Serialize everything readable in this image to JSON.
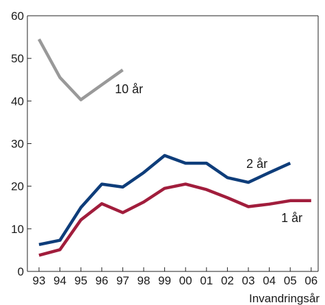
{
  "chart_data": {
    "type": "line",
    "title": "",
    "xlabel": "Invandringsår",
    "ylabel": "",
    "categories": [
      "93",
      "94",
      "95",
      "96",
      "97",
      "98",
      "99",
      "00",
      "01",
      "02",
      "03",
      "04",
      "05",
      "06"
    ],
    "ylim": [
      0,
      60
    ],
    "yticks": [
      0,
      10,
      20,
      30,
      40,
      50,
      60
    ],
    "grid": false,
    "legend": "none",
    "series": [
      {
        "name": "10 år",
        "color": "#999999",
        "values": [
          54.5,
          45.5,
          40.3,
          43.8,
          47.3,
          null,
          null,
          null,
          null,
          null,
          null,
          null,
          null,
          null
        ]
      },
      {
        "name": "2 år",
        "color": "#0e3d7a",
        "values": [
          6.3,
          7.3,
          15.0,
          20.5,
          19.8,
          23.2,
          27.2,
          25.4,
          25.4,
          22.0,
          20.9,
          23.2,
          25.4,
          null
        ]
      },
      {
        "name": "1 år",
        "color": "#a11d3c",
        "values": [
          3.8,
          5.1,
          12.1,
          15.9,
          13.8,
          16.3,
          19.5,
          20.5,
          19.2,
          17.3,
          15.2,
          15.8,
          16.6,
          16.6
        ]
      }
    ]
  }
}
